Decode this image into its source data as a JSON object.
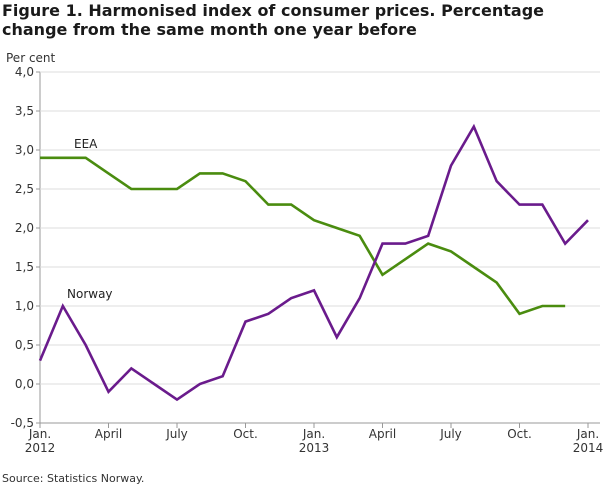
{
  "title": "Figure 1. Harmonised index of consumer prices. Percentage change from the same month one year before",
  "source": "Source: Statistics Norway.",
  "chart_data": {
    "type": "line",
    "title": "Figure 1. Harmonised index of consumer prices. Percentage change from the same month one year before",
    "ylabel": "Per cent",
    "xlabel": "",
    "ylim": [
      -0.5,
      4.0
    ],
    "yticks": [
      -0.5,
      0.0,
      0.5,
      1.0,
      1.5,
      2.0,
      2.5,
      3.0,
      3.5,
      4.0
    ],
    "ytick_labels": [
      "-0,5",
      "0,0",
      "0,5",
      "1,0",
      "1,5",
      "2,0",
      "2,5",
      "3,0",
      "3,5",
      "4,0"
    ],
    "x_count": 25,
    "xticks": [
      {
        "index": 0,
        "line1": "Jan.",
        "line2": "2012"
      },
      {
        "index": 3,
        "line1": "April",
        "line2": ""
      },
      {
        "index": 6,
        "line1": "July",
        "line2": ""
      },
      {
        "index": 9,
        "line1": "Oct.",
        "line2": ""
      },
      {
        "index": 12,
        "line1": "Jan.",
        "line2": "2013"
      },
      {
        "index": 15,
        "line1": "April",
        "line2": ""
      },
      {
        "index": 18,
        "line1": "July",
        "line2": ""
      },
      {
        "index": 21,
        "line1": "Oct.",
        "line2": ""
      },
      {
        "index": 24,
        "line1": "Jan.",
        "line2": "2014"
      }
    ],
    "series": [
      {
        "name": "EEA",
        "color": "#4a8c0f",
        "values": [
          2.9,
          2.9,
          2.9,
          2.7,
          2.5,
          2.5,
          2.5,
          2.7,
          2.7,
          2.6,
          2.3,
          2.3,
          2.1,
          2.0,
          1.9,
          1.4,
          1.6,
          1.8,
          1.7,
          1.5,
          1.3,
          0.9,
          1.0,
          1.0,
          null
        ]
      },
      {
        "name": "Norway",
        "color": "#6a1b8c",
        "values": [
          0.3,
          1.0,
          0.5,
          -0.1,
          0.2,
          0.0,
          -0.2,
          0.0,
          0.1,
          0.8,
          0.9,
          1.1,
          1.2,
          0.6,
          1.1,
          1.8,
          1.8,
          1.9,
          2.8,
          3.3,
          2.6,
          2.3,
          2.3,
          1.8,
          2.1
        ]
      }
    ]
  }
}
